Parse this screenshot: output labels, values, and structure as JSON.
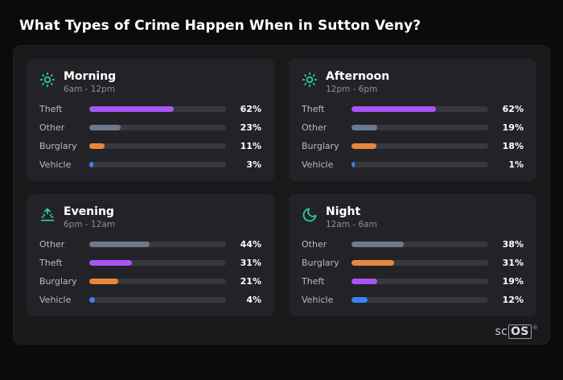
{
  "title": "What Types of Crime Happen When in Sutton Veny?",
  "brand": {
    "prefix": "sc",
    "boxed": "OS",
    "reg": "®"
  },
  "colors": {
    "theft": "#a855f7",
    "other": "#6b7a8f",
    "burglary": "#e8863d",
    "vehicle": "#3b82f6",
    "icon_accent": "#2dd4a8",
    "track": "#37383e"
  },
  "chart_data": [
    {
      "type": "bar",
      "title": "Morning",
      "subtitle": "6am - 12pm",
      "icon": "sun-icon",
      "categories": [
        "Theft",
        "Other",
        "Burglary",
        "Vehicle"
      ],
      "values": [
        62,
        23,
        11,
        3
      ],
      "pct_labels": [
        "62%",
        "23%",
        "11%",
        "3%"
      ],
      "bar_colors": [
        "#a855f7",
        "#6b7a8f",
        "#e8863d",
        "#3b82f6"
      ],
      "xlim": [
        0,
        100
      ],
      "legend": "none",
      "grid": false
    },
    {
      "type": "bar",
      "title": "Afternoon",
      "subtitle": "12pm - 6pm",
      "icon": "sun-icon",
      "categories": [
        "Theft",
        "Other",
        "Burglary",
        "Vehicle"
      ],
      "values": [
        62,
        19,
        18,
        1
      ],
      "pct_labels": [
        "62%",
        "19%",
        "18%",
        "1%"
      ],
      "bar_colors": [
        "#a855f7",
        "#6b7a8f",
        "#e8863d",
        "#3b82f6"
      ],
      "xlim": [
        0,
        100
      ],
      "legend": "none",
      "grid": false
    },
    {
      "type": "bar",
      "title": "Evening",
      "subtitle": "6pm - 12am",
      "icon": "sunrise-icon",
      "categories": [
        "Other",
        "Theft",
        "Burglary",
        "Vehicle"
      ],
      "values": [
        44,
        31,
        21,
        4
      ],
      "pct_labels": [
        "44%",
        "31%",
        "21%",
        "4%"
      ],
      "bar_colors": [
        "#6b7a8f",
        "#a855f7",
        "#e8863d",
        "#3b82f6"
      ],
      "xlim": [
        0,
        100
      ],
      "legend": "none",
      "grid": false
    },
    {
      "type": "bar",
      "title": "Night",
      "subtitle": "12am - 6am",
      "icon": "moon-icon",
      "categories": [
        "Other",
        "Burglary",
        "Theft",
        "Vehicle"
      ],
      "values": [
        38,
        31,
        19,
        12
      ],
      "pct_labels": [
        "38%",
        "31%",
        "19%",
        "12%"
      ],
      "bar_colors": [
        "#6b7a8f",
        "#e8863d",
        "#a855f7",
        "#3b82f6"
      ],
      "xlim": [
        0,
        100
      ],
      "legend": "none",
      "grid": false
    }
  ]
}
